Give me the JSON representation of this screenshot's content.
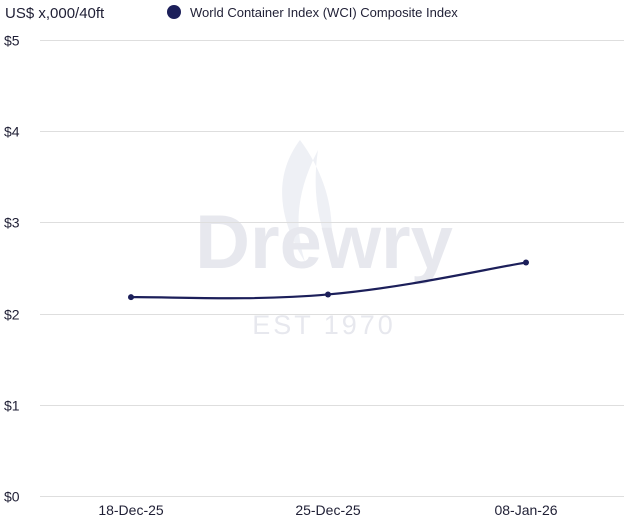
{
  "chart_data": {
    "type": "line",
    "ylabel": "US$ x,000/40ft",
    "categories": [
      "18-Dec-25",
      "25-Dec-25",
      "08-Jan-26"
    ],
    "series": [
      {
        "name": "World Container Index (WCI) Composite Index",
        "values": [
          2.18,
          2.21,
          2.56
        ],
        "color": "#1c1f5a"
      }
    ],
    "ylim": [
      0,
      5
    ],
    "yticks": [
      0,
      1,
      2,
      3,
      4,
      5
    ],
    "ytick_labels": [
      "$0",
      "$1",
      "$2",
      "$3",
      "$4",
      "$5"
    ],
    "grid": true,
    "legend": "top"
  },
  "watermark": {
    "brand": "Drewry",
    "tagline": "EST 1970"
  }
}
